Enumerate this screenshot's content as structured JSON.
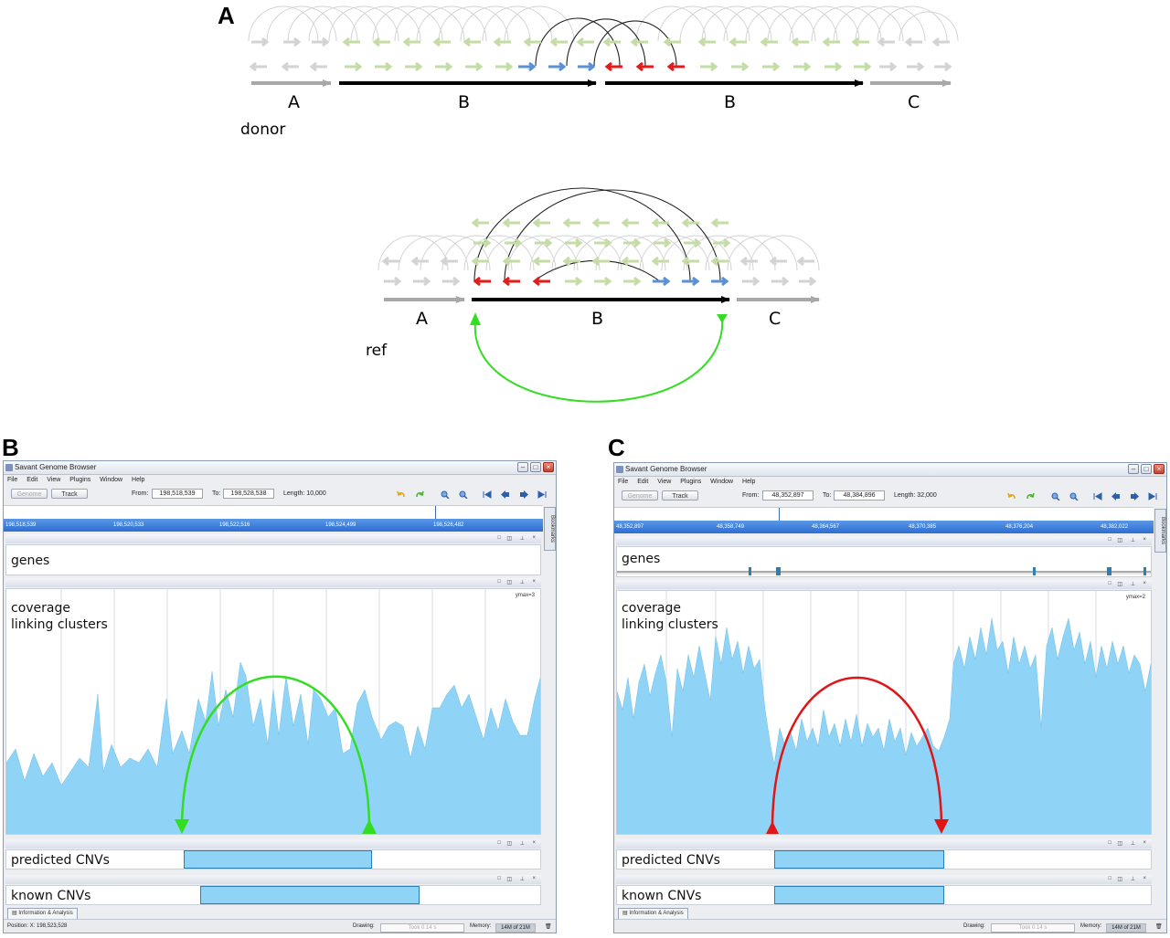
{
  "panels": {
    "a": "A",
    "b": "B",
    "c": "C"
  },
  "diagram": {
    "donor": {
      "label": "donor",
      "segments": [
        "A",
        "B",
        "B",
        "C"
      ]
    },
    "ref": {
      "label": "ref",
      "segments": [
        "A",
        "B",
        "C"
      ]
    },
    "colors": {
      "read_grey": "#d0d0d0",
      "read_green": "#c5dca6",
      "read_blue": "#5b8fd6",
      "read_red": "#e31b1b",
      "backbone_grey": "#a8a8a8",
      "backbone_black": "#000000",
      "link_green": "#33dd22",
      "link_red": "#e01515",
      "coverage": "#8fd3f7"
    }
  },
  "browser_b": {
    "title": "Savant Genome Browser",
    "menu": [
      "File",
      "Edit",
      "View",
      "Plugins",
      "Window",
      "Help"
    ],
    "genome_btn": "Genome",
    "track_btn": "Track",
    "from_label": "From:",
    "from_value": "198,518,539",
    "to_label": "To:",
    "to_value": "198,528,538",
    "length": "Length: 10,000",
    "ruler_ticks": [
      "198,518,539",
      "198,520,533",
      "198,522,516",
      "198,524,499",
      "198,526,482"
    ],
    "bookmarks": "Bookmarks",
    "tracks": {
      "genes": "genes",
      "coverage": "coverage\nlinking clusters",
      "coverage_line1": "coverage",
      "coverage_line2": "linking clusters",
      "ymax": "ymax=3",
      "predicted": "predicted CNVs",
      "known": "known CNVs"
    },
    "info_tab": "Information & Analysis",
    "position": "Position: X: 198,523,528",
    "drawing_label": "Drawing:",
    "drawing_value": "Took 0.14 s",
    "memory_label": "Memory:",
    "memory_value": "14M of 21M"
  },
  "browser_c": {
    "title": "Savant Genome Browser",
    "menu": [
      "File",
      "Edit",
      "View",
      "Plugins",
      "Window",
      "Help"
    ],
    "genome_btn": "Genome",
    "track_btn": "Track",
    "from_label": "From:",
    "from_value": "48,352,897",
    "to_label": "To:",
    "to_value": "48,384,896",
    "length": "Length: 32,000",
    "ruler_ticks": [
      "48,352,897",
      "48,358,749",
      "48,364,567",
      "48,370,385",
      "48,376,204",
      "48,382,022"
    ],
    "bookmarks": "Bookmarks",
    "tracks": {
      "genes": "genes",
      "coverage_line1": "coverage",
      "coverage_line2": "linking clusters",
      "ymax": "ymax=2",
      "predicted": "predicted CNVs",
      "known": "known CNVs"
    },
    "info_tab": "Information & Analysis",
    "drawing_label": "Drawing:",
    "drawing_value": "Took 0.14 s",
    "memory_label": "Memory:",
    "memory_value": "14M of 21M"
  }
}
